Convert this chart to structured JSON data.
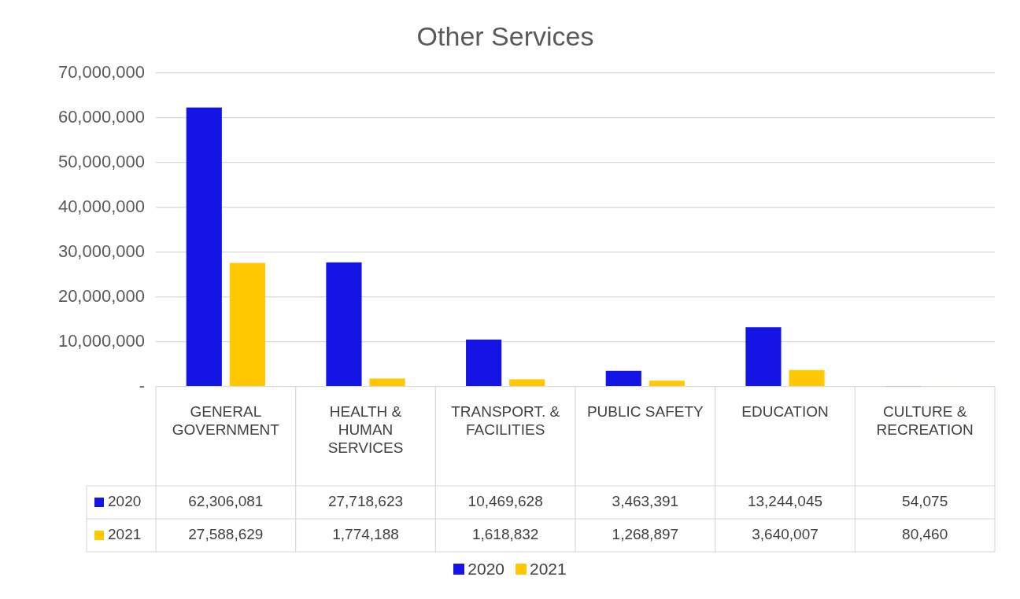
{
  "chart_data": {
    "type": "bar",
    "title": "Other Services",
    "categories": [
      "GENERAL GOVERNMENT",
      "HEALTH & HUMAN SERVICES",
      "TRANSPORT. & FACILITIES",
      "PUBLIC SAFETY",
      "EDUCATION",
      "CULTURE & RECREATION"
    ],
    "series": [
      {
        "name": "2020",
        "color": "#1414e6",
        "values": [
          62306081,
          27718623,
          10469628,
          3463391,
          13244045,
          54075
        ],
        "value_labels": [
          "62,306,081",
          "27,718,623",
          "10,469,628",
          "3,463,391",
          "13,244,045",
          "54,075"
        ]
      },
      {
        "name": "2021",
        "color": "#ffc800",
        "values": [
          27588629,
          1774188,
          1618832,
          1268897,
          3640007,
          80460
        ],
        "value_labels": [
          "27,588,629",
          "1,774,188",
          "1,618,832",
          "1,268,897",
          "3,640,007",
          "80,460"
        ]
      }
    ],
    "ylim": [
      0,
      70000000
    ],
    "yticks": [
      {
        "value": 0,
        "label": "-"
      },
      {
        "value": 10000000,
        "label": "10,000,000"
      },
      {
        "value": 20000000,
        "label": "20,000,000"
      },
      {
        "value": 30000000,
        "label": "30,000,000"
      },
      {
        "value": 40000000,
        "label": "40,000,000"
      },
      {
        "value": 50000000,
        "label": "50,000,000"
      },
      {
        "value": 60000000,
        "label": "60,000,000"
      },
      {
        "value": 70000000,
        "label": "70,000,000"
      }
    ],
    "grid": "y",
    "legend": "bottom"
  }
}
